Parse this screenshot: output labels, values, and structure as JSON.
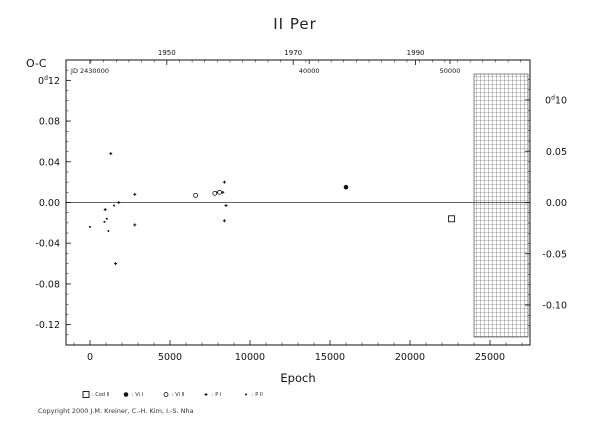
{
  "chart_data": {
    "type": "scatter",
    "title": "II Per",
    "xlabel": "Epoch",
    "ylabel": "O-C",
    "xlim": [
      -1500,
      27500
    ],
    "ylim": [
      -0.14,
      0.14
    ],
    "left_axis_ticks": [
      "0d12",
      "0.08",
      "0.04",
      "0.00",
      "-0.04",
      "-0.08",
      "-0.12"
    ],
    "left_tick_values": [
      0.12,
      0.08,
      0.04,
      0.0,
      -0.04,
      -0.08,
      -0.12
    ],
    "right_axis_ticks": [
      "0d10",
      "0.05",
      "0.00",
      "-0.05",
      "-0.10"
    ],
    "right_tick_values": [
      0.1,
      0.05,
      0.0,
      -0.05,
      -0.1
    ],
    "x_ticks": [
      0,
      5000,
      10000,
      15000,
      20000,
      25000
    ],
    "top_year_ticks": [
      {
        "label": "1950",
        "x": 4800
      },
      {
        "label": "1970",
        "x": 12700
      },
      {
        "label": "1990",
        "x": 20350
      }
    ],
    "jd_ticks": [
      {
        "label": "JD 2430000",
        "x": 0
      },
      {
        "label": "40000",
        "x": 13700
      },
      {
        "label": "50000",
        "x": 22500
      }
    ],
    "prediction_zone_start": 24000,
    "series": [
      {
        "name": "Cod II",
        "marker": "open-square",
        "points": [
          [
            22600,
            -0.016
          ]
        ]
      },
      {
        "name": "Vi I",
        "marker": "filled-circle",
        "points": [
          [
            16000,
            0.015
          ]
        ]
      },
      {
        "name": "Vi II",
        "marker": "open-circle",
        "points": [
          [
            6600,
            0.007
          ],
          [
            7800,
            0.009
          ],
          [
            8100,
            0.01
          ]
        ]
      },
      {
        "name": "P I",
        "marker": "plus",
        "points": [
          [
            1300,
            0.048
          ],
          [
            950,
            -0.007
          ],
          [
            2800,
            0.008
          ],
          [
            2800,
            -0.022
          ],
          [
            1800,
            0.0
          ],
          [
            1600,
            -0.06
          ],
          [
            8400,
            0.02
          ],
          [
            8300,
            0.01
          ],
          [
            8500,
            -0.003
          ],
          [
            8400,
            -0.018
          ]
        ]
      },
      {
        "name": "P II",
        "marker": "small-plus",
        "points": [
          [
            0,
            -0.024
          ],
          [
            900,
            -0.019
          ],
          [
            1050,
            -0.016
          ],
          [
            1150,
            -0.028
          ],
          [
            1500,
            -0.003
          ],
          [
            7950,
            0.01
          ]
        ]
      }
    ],
    "legend": [
      {
        "symbol": "□",
        "label": ": Cod II"
      },
      {
        "symbol": "●",
        "label": ": Vi I"
      },
      {
        "symbol": "○",
        "label": ": Vi II"
      },
      {
        "symbol": "+",
        "label": ": P I"
      },
      {
        "symbol": "·",
        "label": ": P II"
      }
    ],
    "legend_placement": "bottom-left",
    "grid": false
  },
  "copyright": "Copyright 2000 J.M. Kreiner, C.-H. Kim, I.-S. Nha"
}
